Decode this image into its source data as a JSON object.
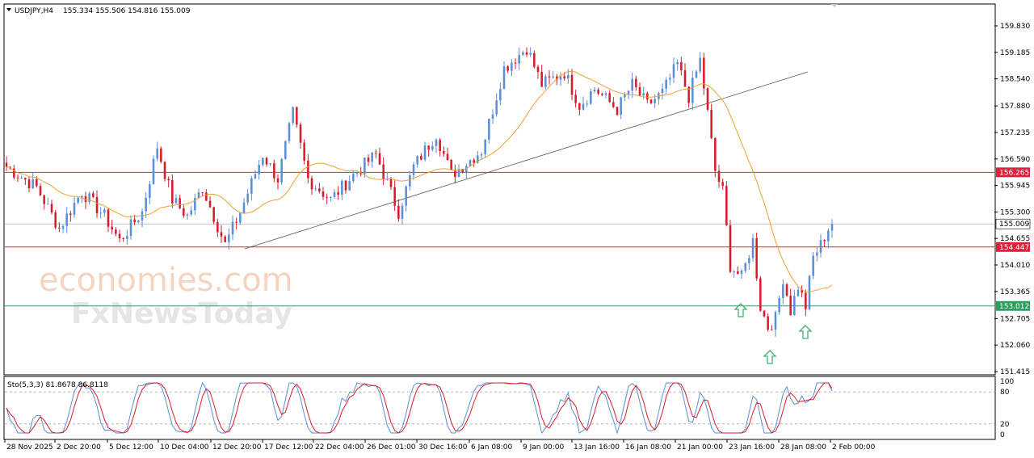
{
  "header": {
    "symbol_timeframe": "USDJPY,H4",
    "ohlc": "155.334 155.506 154.816 155.009"
  },
  "watermark": {
    "brand1": "economies.com",
    "brand2": "FxNewsToday"
  },
  "levels": [
    {
      "value": 156.265,
      "label": "156.265",
      "color": "#e0203a"
    },
    {
      "value": 155.009,
      "label": "155.009",
      "color": "#c0c0c0"
    },
    {
      "value": 154.447,
      "label": "154.447",
      "color": "#e0203a"
    },
    {
      "value": 153.012,
      "label": "153.012",
      "color": "#2e9e5e"
    }
  ],
  "indicator": {
    "label": "Sto(5,3,3) 81.8678 86.8118",
    "levels": [
      "100",
      "80",
      "20",
      "0"
    ]
  },
  "colors": {
    "bull": "#5b8fd8",
    "bear": "#d81c2c",
    "ma": "#f0a030",
    "trendline": "#555555",
    "stoch_main": "#5b8fd8",
    "stoch_signal": "#d81c2c",
    "arrow": "#3cb371"
  },
  "chart_data": {
    "type": "candlestick",
    "symbol": "USDJPY",
    "timeframe": "H4",
    "ylim": [
      151.2,
      160.1
    ],
    "yticks": [
      "159.830",
      "159.185",
      "158.540",
      "157.880",
      "157.235",
      "156.590",
      "155.945",
      "155.300",
      "154.655",
      "154.010",
      "153.365",
      "152.705",
      "152.060",
      "151.415"
    ],
    "xticks": [
      "28 Nov 2025",
      "2 Dec 20:00",
      "5 Dec 12:00",
      "10 Dec 04:00",
      "12 Dec 20:00",
      "17 Dec 12:00",
      "22 Dec 04:00",
      "26 Dec 01:00",
      "30 Dec 16:00",
      "6 Jan 08:00",
      "9 Jan 00:00",
      "13 Jan 16:00",
      "16 Jan 08:00",
      "21 Jan 00:00",
      "23 Jan 16:00",
      "28 Jan 08:00",
      "2 Feb 00:00"
    ],
    "price_path": [
      [
        0,
        156.4
      ],
      [
        8,
        155.9
      ],
      [
        14,
        154.9
      ],
      [
        20,
        155.8
      ],
      [
        26,
        155.2
      ],
      [
        30,
        154.6
      ],
      [
        36,
        155.3
      ],
      [
        40,
        156.9
      ],
      [
        44,
        155.6
      ],
      [
        48,
        155.2
      ],
      [
        52,
        155.9
      ],
      [
        58,
        154.5
      ],
      [
        62,
        155.3
      ],
      [
        68,
        156.7
      ],
      [
        72,
        156.1
      ],
      [
        76,
        157.7
      ],
      [
        80,
        156.1
      ],
      [
        86,
        155.6
      ],
      [
        92,
        156.2
      ],
      [
        98,
        156.7
      ],
      [
        104,
        155.3
      ],
      [
        108,
        156.4
      ],
      [
        114,
        157.2
      ],
      [
        118,
        156.2
      ],
      [
        122,
        156.5
      ],
      [
        126,
        156.8
      ],
      [
        132,
        158.8
      ],
      [
        138,
        159.3
      ],
      [
        142,
        158.4
      ],
      [
        148,
        158.7
      ],
      [
        152,
        157.9
      ],
      [
        156,
        158.3
      ],
      [
        162,
        157.8
      ],
      [
        166,
        158.4
      ],
      [
        170,
        157.9
      ],
      [
        174,
        158.2
      ],
      [
        178,
        158.9
      ],
      [
        181,
        158.1
      ],
      [
        184,
        159.0
      ],
      [
        186,
        157.7
      ],
      [
        188,
        156.3
      ],
      [
        190,
        155.8
      ],
      [
        192,
        154.0
      ],
      [
        195,
        153.7
      ],
      [
        198,
        154.6
      ],
      [
        200,
        153.0
      ],
      [
        202,
        152.5
      ],
      [
        204,
        152.7
      ],
      [
        206,
        153.7
      ],
      [
        208,
        152.9
      ],
      [
        210,
        153.5
      ],
      [
        212,
        153.0
      ],
      [
        214,
        154.2
      ],
      [
        216,
        154.5
      ],
      [
        218,
        154.9
      ],
      [
        219,
        155.0
      ]
    ],
    "bars_count": 220,
    "moving_average": "orange",
    "stochastic": {
      "k_period": 5,
      "d_period": 3,
      "slowing": 3,
      "main": 81.8678,
      "signal": 86.8118,
      "overbought": 80,
      "oversold": 20
    },
    "horizontal_levels": [
      156.265,
      155.009,
      154.447,
      153.012
    ],
    "last_price": 155.009
  }
}
